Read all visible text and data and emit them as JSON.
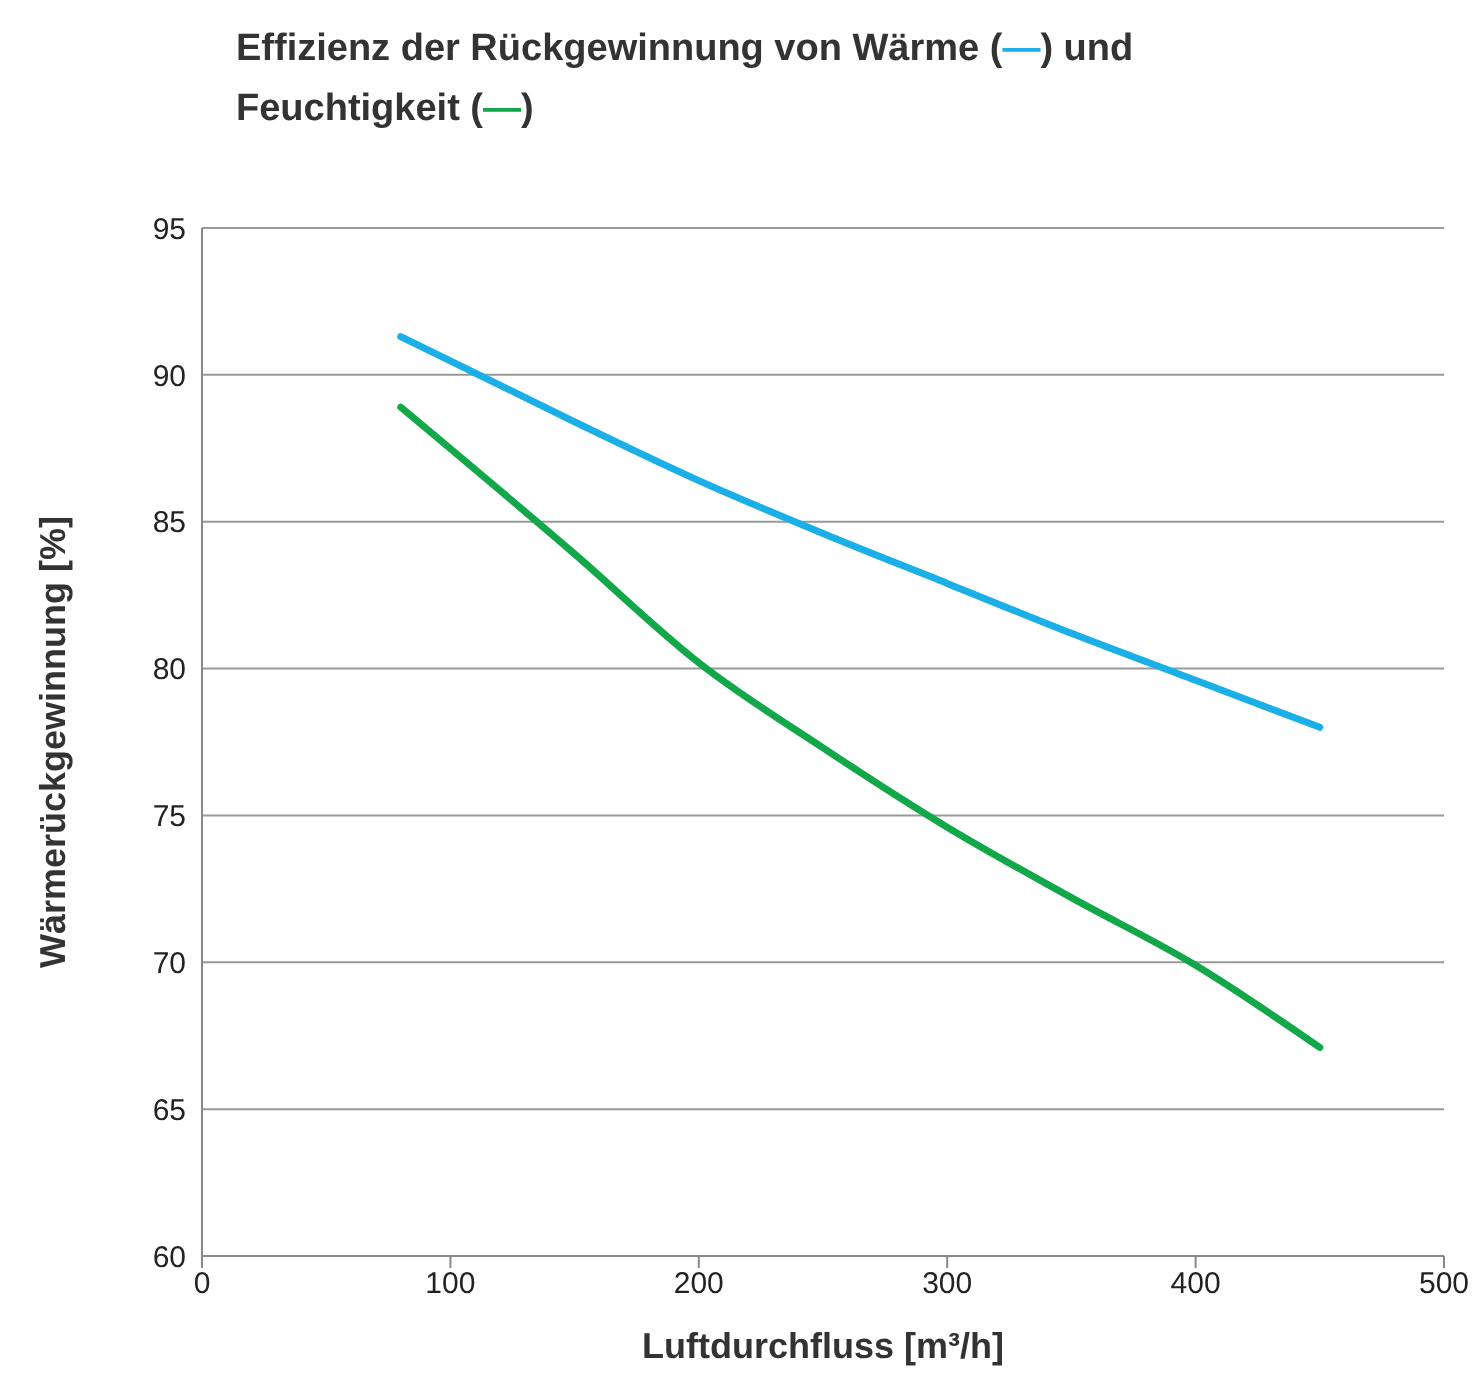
{
  "chart_data": {
    "type": "line",
    "title": "Effizienz der Rückgewinnung von Wärme (—) und Feuchtigkeit (—)",
    "xlabel": "Luftdurchfluss [m³/h]",
    "ylabel": "Wärmerückgewinnung [%]",
    "x": [
      80,
      150,
      200,
      250,
      300,
      350,
      400,
      450
    ],
    "series": [
      {
        "color": "#1aafe6",
        "values": [
          91.3,
          88.4,
          86.4,
          84.6,
          82.9,
          81.2,
          79.6,
          78.0
        ]
      },
      {
        "color": "#12a84a",
        "values": [
          88.9,
          83.9,
          80.2,
          77.3,
          74.6,
          72.2,
          69.9,
          67.1
        ]
      }
    ],
    "xlim": [
      0,
      500
    ],
    "xticks": [
      0,
      100,
      200,
      300,
      400,
      500
    ],
    "ylim": [
      60,
      95
    ],
    "yticks": [
      60,
      65,
      70,
      75,
      80,
      85,
      90,
      95
    ],
    "grid": "y",
    "marker": "none",
    "line_style": "solid"
  }
}
